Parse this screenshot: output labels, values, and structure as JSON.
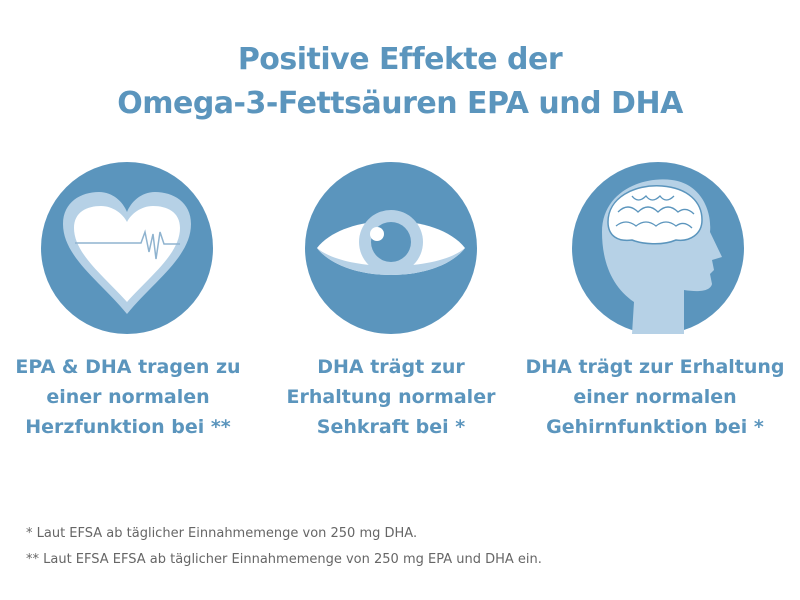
{
  "title": {
    "line1": "Positive Effekte der",
    "line2": "Omega-3-Fettsäuren EPA und DHA"
  },
  "colors": {
    "primary": "#5b95bd",
    "light": "#b6d1e6",
    "text": "#666666"
  },
  "items": [
    {
      "icon": "heart-ecg-icon",
      "lines": [
        "EPA & DHA tragen zu",
        "einer normalen",
        "Herzfunktion bei **"
      ]
    },
    {
      "icon": "eye-icon",
      "lines": [
        "DHA trägt zur",
        "Erhaltung normaler",
        "Sehkraft bei *"
      ]
    },
    {
      "icon": "head-brain-icon",
      "lines": [
        "DHA trägt zur Erhaltung",
        "einer normalen",
        "Gehirnfunktion bei *"
      ]
    }
  ],
  "footnotes": [
    "* Laut EFSA ab täglicher Einnahmemenge von 250 mg DHA.",
    "** Laut EFSA EFSA ab täglicher Einnahmemenge von 250 mg EPA und DHA ein."
  ]
}
